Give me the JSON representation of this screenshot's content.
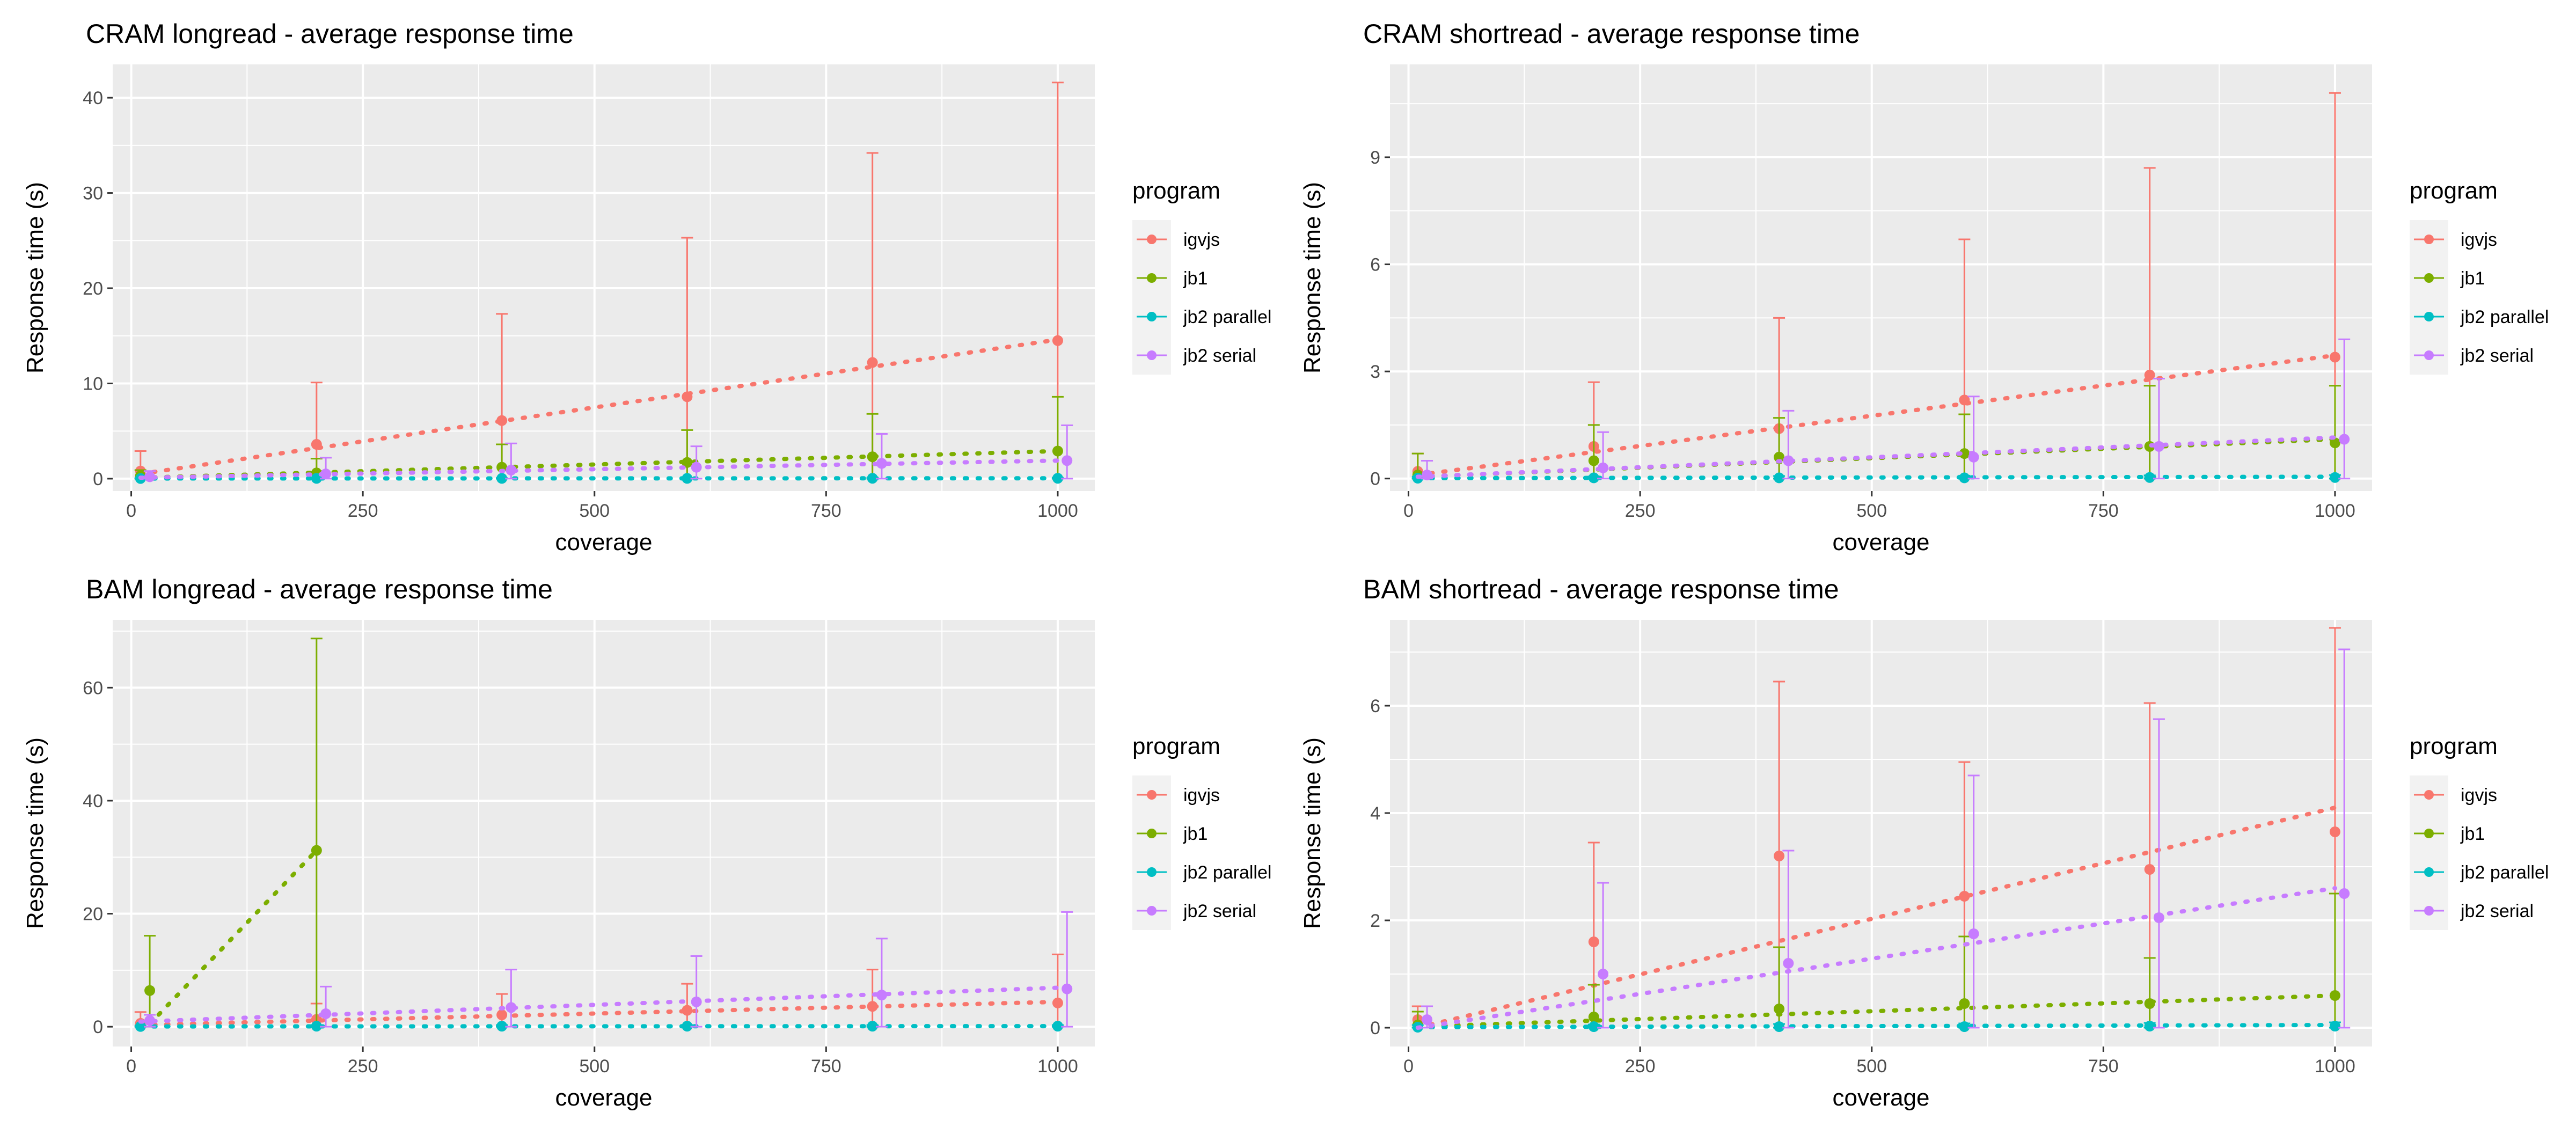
{
  "legend_title": "program",
  "chart_data": [
    {
      "type": "line",
      "title": "CRAM longread - average response time",
      "xlabel": "coverage",
      "ylabel": "Response time (s)",
      "xlim": [
        -20,
        1040
      ],
      "ylim": [
        -1.3,
        43.5
      ],
      "xticks": [
        0,
        250,
        500,
        750,
        1000
      ],
      "yticks": [
        0,
        10,
        20,
        30,
        40
      ],
      "grid": true,
      "legend_position": "right",
      "series": [
        {
          "name": "igvjs",
          "color": "#F8766D",
          "x": [
            10,
            200,
            400,
            600,
            800,
            1000
          ],
          "mean": [
            0.8,
            3.6,
            6.1,
            8.6,
            12.2,
            14.5
          ],
          "ymin": [
            0,
            0,
            0,
            0,
            0,
            0
          ],
          "ymax": [
            2.9,
            10.1,
            17.3,
            25.3,
            34.2,
            41.6
          ],
          "trend": [
            0.5,
            14.6
          ]
        },
        {
          "name": "jb1",
          "color": "#7CAE00",
          "x": [
            10,
            200,
            400,
            600,
            800,
            1000
          ],
          "mean": [
            0.3,
            0.6,
            1.2,
            1.7,
            2.3,
            2.9
          ],
          "ymin": [
            0,
            0,
            0,
            0,
            0,
            0
          ],
          "ymax": [
            0.9,
            2.1,
            3.6,
            5.1,
            6.8,
            8.6
          ],
          "trend": [
            0.1,
            2.9
          ]
        },
        {
          "name": "jb2 parallel",
          "color": "#00BFC4",
          "x": [
            10,
            200,
            400,
            600,
            800,
            1000
          ],
          "mean": [
            0.02,
            0.03,
            0.03,
            0.03,
            0.04,
            0.04
          ],
          "ymin": [
            0,
            0,
            0,
            0,
            0,
            0
          ],
          "ymax": [
            0.05,
            0.06,
            0.07,
            0.08,
            0.09,
            0.1
          ],
          "trend": [
            0.02,
            0.04
          ]
        },
        {
          "name": "jb2 serial",
          "color": "#C77CFF",
          "x": [
            20,
            210,
            410,
            610,
            810,
            1010
          ],
          "mean": [
            0.2,
            0.5,
            0.9,
            1.2,
            1.6,
            1.9
          ],
          "ymin": [
            0,
            0,
            0,
            0,
            0,
            0
          ],
          "ymax": [
            0.8,
            2.2,
            3.7,
            3.4,
            4.7,
            5.6
          ],
          "trend": [
            0.1,
            1.9
          ]
        }
      ]
    },
    {
      "type": "line",
      "title": "CRAM shortread - average response time",
      "xlabel": "coverage",
      "ylabel": "Response time (s)",
      "xlim": [
        -20,
        1040
      ],
      "ylim": [
        -0.35,
        11.6
      ],
      "xticks": [
        0,
        250,
        500,
        750,
        1000
      ],
      "yticks": [
        0,
        3,
        6,
        9
      ],
      "grid": true,
      "legend_position": "right",
      "series": [
        {
          "name": "igvjs",
          "color": "#F8766D",
          "x": [
            10,
            200,
            400,
            600,
            800,
            1000
          ],
          "mean": [
            0.2,
            0.9,
            1.4,
            2.2,
            2.9,
            3.4
          ],
          "ymin": [
            0,
            0,
            0,
            0,
            0,
            0
          ],
          "ymax": [
            0.7,
            2.7,
            4.5,
            6.7,
            8.7,
            10.8
          ],
          "trend": [
            0.1,
            3.45
          ]
        },
        {
          "name": "jb1",
          "color": "#7CAE00",
          "x": [
            10,
            200,
            400,
            600,
            800,
            1000
          ],
          "mean": [
            0.1,
            0.5,
            0.6,
            0.7,
            0.9,
            1.0
          ],
          "ymin": [
            0,
            0,
            0,
            0,
            0,
            0
          ],
          "ymax": [
            0.7,
            1.5,
            1.7,
            1.8,
            2.6,
            2.6
          ],
          "trend": [
            0.05,
            1.1
          ]
        },
        {
          "name": "jb2 parallel",
          "color": "#00BFC4",
          "x": [
            10,
            200,
            400,
            600,
            800,
            1000
          ],
          "mean": [
            0.01,
            0.02,
            0.02,
            0.02,
            0.03,
            0.03
          ],
          "ymin": [
            0,
            0,
            0,
            0,
            0,
            0
          ],
          "ymax": [
            0.05,
            0.06,
            0.07,
            0.08,
            0.09,
            0.1
          ],
          "trend": [
            0.01,
            0.05
          ]
        },
        {
          "name": "jb2 serial",
          "color": "#C77CFF",
          "x": [
            20,
            210,
            410,
            610,
            810,
            1010
          ],
          "mean": [
            0.1,
            0.3,
            0.5,
            0.6,
            0.9,
            1.1
          ],
          "ymin": [
            0,
            0,
            0,
            0,
            0,
            0
          ],
          "ymax": [
            0.5,
            1.3,
            1.9,
            2.3,
            2.8,
            3.9
          ],
          "trend": [
            0.05,
            1.15
          ]
        }
      ]
    },
    {
      "type": "line",
      "title": "BAM longread - average response time",
      "xlabel": "coverage",
      "ylabel": "Response time (s)",
      "xlim": [
        -20,
        1040
      ],
      "ylim": [
        -3.5,
        72
      ],
      "xticks": [
        0,
        250,
        500,
        750,
        1000
      ],
      "yticks": [
        0,
        20,
        40,
        60
      ],
      "grid": true,
      "legend_position": "right",
      "series": [
        {
          "name": "igvjs",
          "color": "#F8766D",
          "x": [
            10,
            200,
            400,
            600,
            800,
            1000
          ],
          "mean": [
            0.6,
            1.3,
            2.1,
            2.9,
            3.6,
            4.2
          ],
          "ymin": [
            0,
            0,
            0,
            0,
            0,
            0
          ],
          "ymax": [
            2.6,
            4.1,
            5.8,
            7.6,
            10.1,
            12.8
          ],
          "trend": [
            0.3,
            4.4
          ]
        },
        {
          "name": "jb1",
          "color": "#7CAE00",
          "x": [
            20,
            200
          ],
          "mean": [
            6.4,
            31.2
          ],
          "ymin": [
            0,
            0
          ],
          "ymax": [
            16.1,
            68.7
          ],
          "trend_x": [
            20,
            200
          ],
          "trend": [
            0.5,
            31.2
          ]
        },
        {
          "name": "jb2 parallel",
          "color": "#00BFC4",
          "x": [
            10,
            200,
            400,
            600,
            800,
            1000
          ],
          "mean": [
            0.05,
            0.1,
            0.1,
            0.1,
            0.1,
            0.1
          ],
          "ymin": [
            0,
            0,
            0,
            0,
            0,
            0
          ],
          "ymax": [
            0.2,
            0.3,
            0.3,
            0.3,
            0.3,
            0.3
          ],
          "trend": [
            0.05,
            0.1
          ]
        },
        {
          "name": "jb2 serial",
          "color": "#C77CFF",
          "x": [
            20,
            210,
            410,
            610,
            810,
            1010
          ],
          "mean": [
            1.1,
            2.3,
            3.4,
            4.4,
            5.6,
            6.7
          ],
          "ymin": [
            0,
            0,
            0,
            0,
            0,
            0
          ],
          "ymax": [
            2.1,
            7.1,
            10.1,
            12.5,
            15.6,
            20.3
          ],
          "trend": [
            0.9,
            6.9
          ]
        }
      ]
    },
    {
      "type": "line",
      "title": "BAM shortread - average response time",
      "xlabel": "coverage",
      "ylabel": "Response time (s)",
      "xlim": [
        -20,
        1040
      ],
      "ylim": [
        -0.35,
        7.6
      ],
      "xticks": [
        0,
        250,
        500,
        750,
        1000
      ],
      "yticks": [
        0,
        2,
        4,
        6
      ],
      "grid": true,
      "legend_position": "right",
      "series": [
        {
          "name": "igvjs",
          "color": "#F8766D",
          "x": [
            10,
            200,
            400,
            600,
            800,
            1000
          ],
          "mean": [
            0.15,
            1.6,
            3.2,
            2.45,
            2.95,
            3.65
          ],
          "ymin": [
            0,
            0,
            0,
            0,
            0,
            0
          ],
          "ymax": [
            0.4,
            3.45,
            6.45,
            4.95,
            6.05,
            7.45
          ],
          "trend": [
            0.0,
            4.1
          ]
        },
        {
          "name": "jb1",
          "color": "#7CAE00",
          "x": [
            10,
            200,
            400,
            600,
            800,
            1000
          ],
          "mean": [
            0.05,
            0.2,
            0.35,
            0.45,
            0.45,
            0.6
          ],
          "ymin": [
            0,
            0,
            0,
            0,
            0,
            0
          ],
          "ymax": [
            0.3,
            0.8,
            1.5,
            1.7,
            1.3,
            2.5
          ],
          "trend": [
            0.02,
            0.6
          ]
        },
        {
          "name": "jb2 parallel",
          "color": "#00BFC4",
          "x": [
            10,
            200,
            400,
            600,
            800,
            1000
          ],
          "mean": [
            0.01,
            0.02,
            0.02,
            0.02,
            0.03,
            0.03
          ],
          "ymin": [
            0,
            0,
            0,
            0,
            0,
            0
          ],
          "ymax": [
            0.05,
            0.06,
            0.07,
            0.08,
            0.09,
            0.1
          ],
          "trend": [
            0.01,
            0.05
          ]
        },
        {
          "name": "jb2 serial",
          "color": "#C77CFF",
          "x": [
            20,
            210,
            410,
            610,
            810,
            1010
          ],
          "mean": [
            0.15,
            1.0,
            1.2,
            1.75,
            2.05,
            2.5
          ],
          "ymin": [
            0,
            0,
            0,
            0,
            0,
            0
          ],
          "ymax": [
            0.4,
            2.7,
            3.3,
            4.7,
            5.75,
            7.05
          ],
          "trend": [
            0.0,
            2.6
          ]
        }
      ]
    }
  ]
}
